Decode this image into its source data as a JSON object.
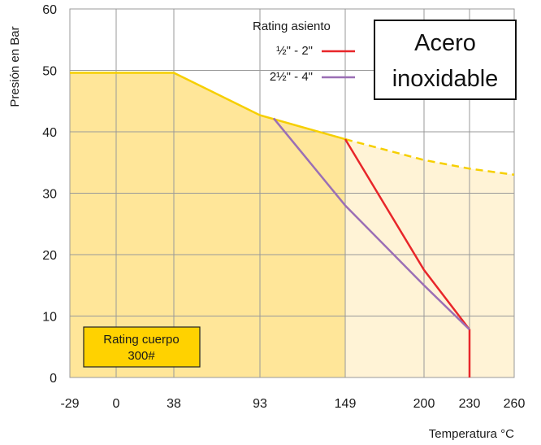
{
  "chart_data": {
    "type": "area",
    "title_lines": [
      "Acero",
      "inoxidable"
    ],
    "xlabel": "Temperatura °C",
    "ylabel": "Presión en Bar",
    "x_ticks": [
      -29,
      0,
      38,
      93,
      149,
      200,
      230,
      260
    ],
    "y_ticks": [
      0,
      10,
      20,
      30,
      40,
      50,
      60
    ],
    "ylim": [
      0,
      60
    ],
    "grid": true,
    "body_rating": {
      "label_lines": [
        "Rating cuerpo",
        "300#"
      ],
      "color": "#ffd200",
      "fill": "#ffe699",
      "fill_extension": "#fff3d6",
      "line_color": "#f6cf00",
      "x": [
        -29,
        38,
        93,
        149
      ],
      "y": [
        49.6,
        49.6,
        42.7,
        38.8
      ],
      "extension_x": [
        149,
        200,
        230,
        260
      ],
      "extension_y": [
        38.8,
        35.4,
        34.0,
        33.0
      ]
    },
    "legend": {
      "title": "Rating asiento",
      "position": "top-center"
    },
    "series": [
      {
        "name": "½\" - 2\"",
        "color": "#e8262a",
        "x": [
          149,
          200,
          230,
          230
        ],
        "y": [
          38.8,
          17.5,
          7.8,
          0
        ]
      },
      {
        "name": "2½\" - 4\"",
        "color": "#9b6fb5",
        "x": [
          102,
          149,
          200,
          230
        ],
        "y": [
          42.2,
          28.0,
          15.0,
          7.8
        ]
      }
    ]
  }
}
